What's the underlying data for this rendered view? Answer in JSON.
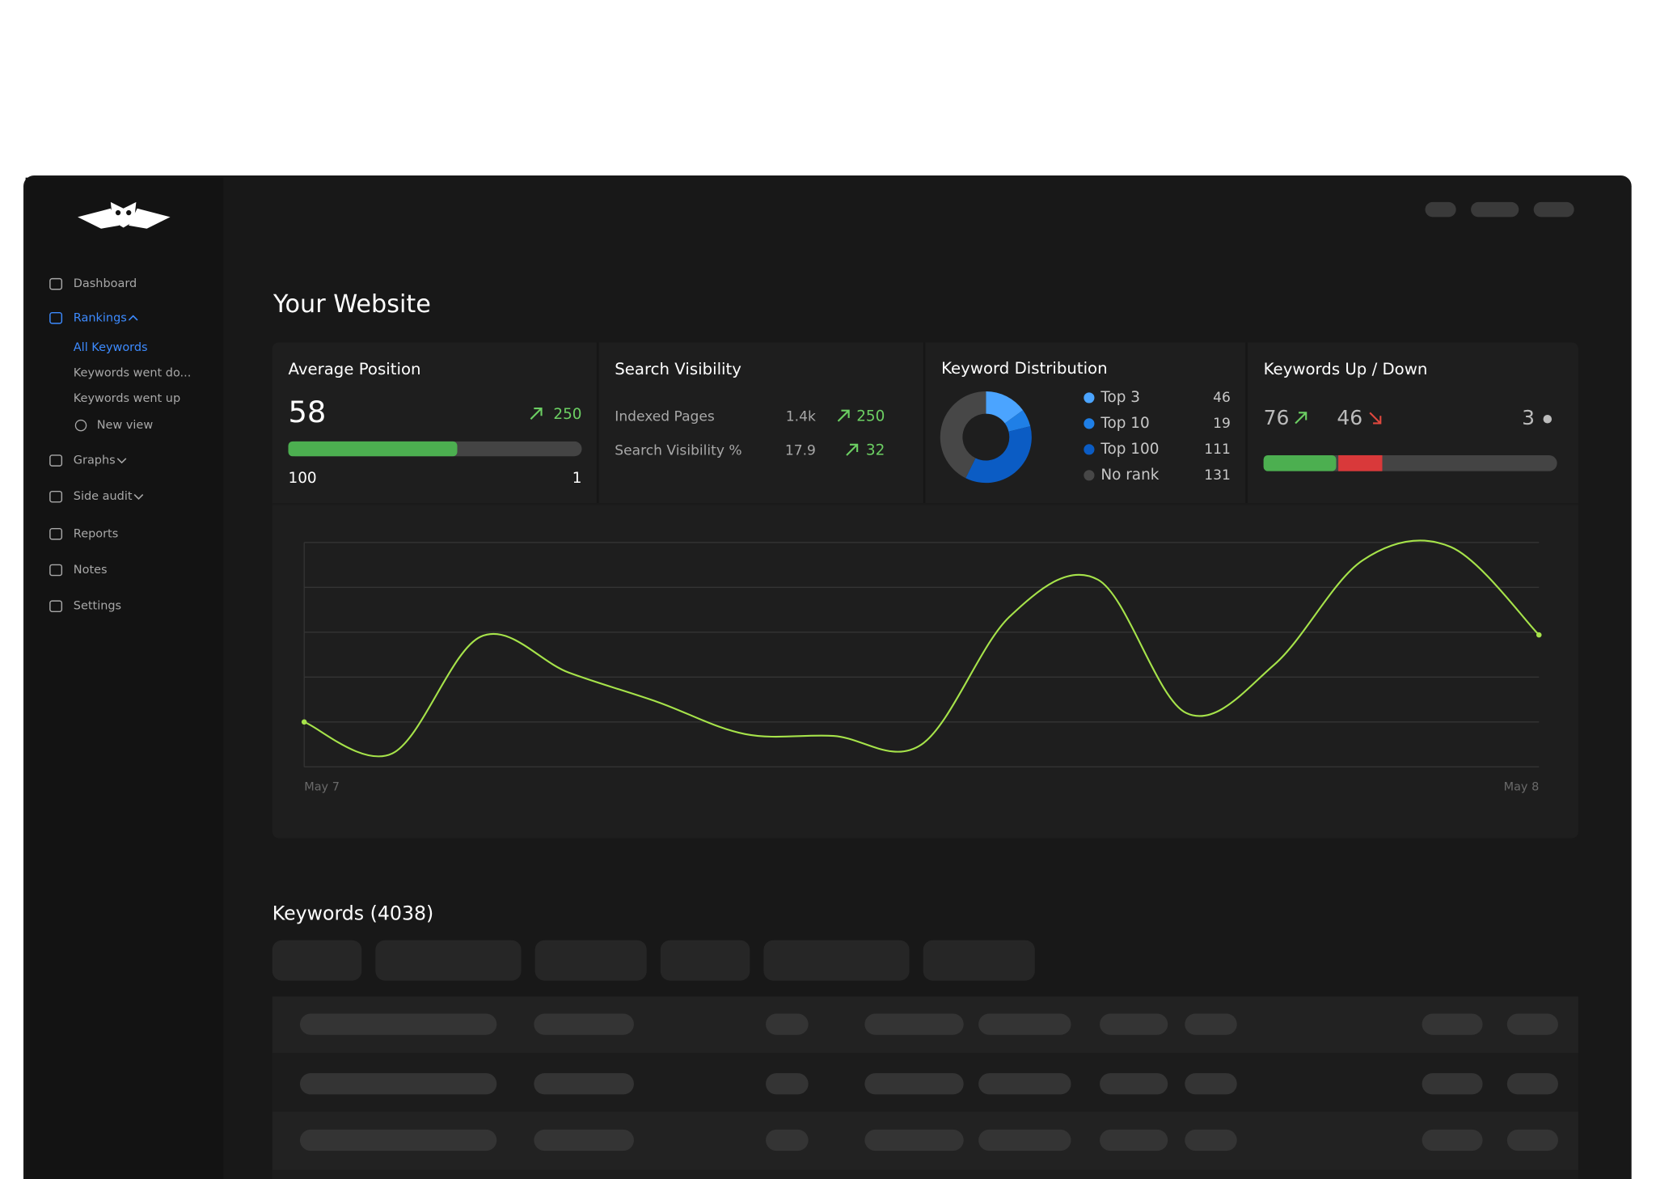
{
  "sidebar": {
    "items": [
      "Dashboard",
      "Rankings",
      "Graphs",
      "Side audit",
      "Reports",
      "Notes",
      "Settings"
    ],
    "subitems": [
      "All Keywords",
      "Keywords went do...",
      "Keywords went up",
      "New view"
    ]
  },
  "header": {
    "title": "Your Website"
  },
  "cards": {
    "average_position": {
      "title": "Average Position",
      "value": 58,
      "change": 250,
      "start_label": 100,
      "end_label": 1
    },
    "search_visibility": {
      "title": "Search Visibility",
      "rows": [
        {
          "label": "Indexed Pages",
          "value": "1.4k",
          "change": 250
        },
        {
          "label": "Search Visibility %",
          "value": 17.9,
          "change": 32
        }
      ]
    },
    "keyword_distribution": {
      "title": "Keyword Distribution",
      "items": [
        {
          "label": "Top 3",
          "value": 46,
          "color": "#4ba4ff"
        },
        {
          "label": "Top 10",
          "value": 19,
          "color": "#1f7fe6"
        },
        {
          "label": "Top 100",
          "value": 111,
          "color": "#0b5cc4"
        },
        {
          "label": "No rank",
          "value": 131,
          "color": "#474747"
        }
      ]
    },
    "keywords_up_down": {
      "title": "Keywords Up / Down",
      "up": 76,
      "down": 46,
      "unchanged": 3
    }
  },
  "trend_chart": {
    "type": "line",
    "categories": [
      "May 7",
      null,
      null,
      null,
      null,
      null,
      null,
      null,
      null,
      null,
      null,
      null,
      null,
      null,
      "May 8"
    ],
    "values": [
      1.0,
      0.3,
      2.9,
      2.1,
      1.45,
      0.73,
      0.69,
      0.5,
      3.35,
      4.17,
      1.2,
      2.28,
      4.6,
      4.9,
      2.94
    ],
    "color": "#a6e34a",
    "ylim": [
      0,
      5
    ],
    "yticks": [
      0,
      1,
      2,
      3,
      4,
      5
    ],
    "grid": true
  },
  "keywords": {
    "title": "Keywords (4038)"
  }
}
